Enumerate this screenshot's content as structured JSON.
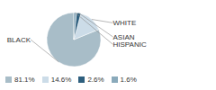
{
  "chart_data": {
    "type": "pie",
    "categories": [
      "BLACK",
      "WHITE",
      "ASIAN",
      "HISPANIC"
    ],
    "values": [
      81.1,
      14.6,
      2.6,
      1.6
    ],
    "colors": [
      "#a8bdc8",
      "#ccdce8",
      "#2e5f7e",
      "#8aaabb"
    ],
    "value_labels": [
      "81.1%",
      "14.6%",
      "2.6%",
      "1.6%"
    ],
    "legend": "lower left"
  }
}
